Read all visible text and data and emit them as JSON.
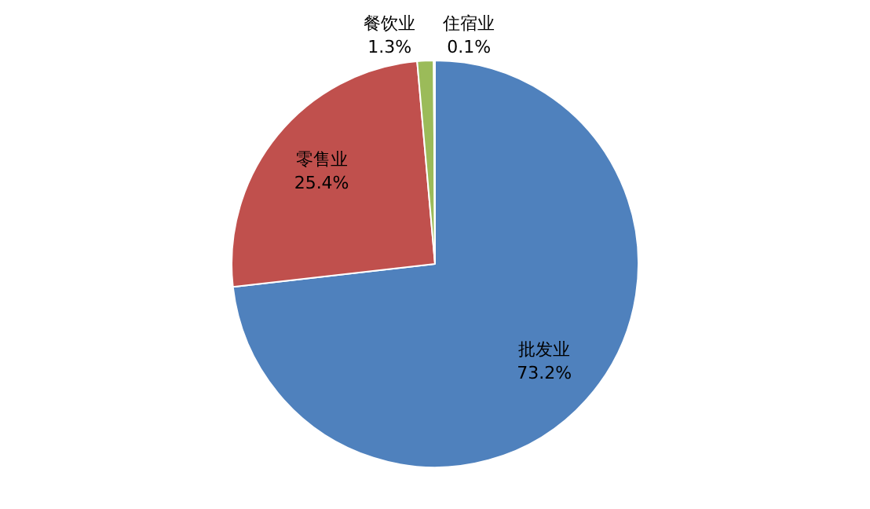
{
  "chart_data": {
    "type": "pie",
    "categories": [
      "批发业",
      "零售业",
      "餐饮业",
      "住宿业"
    ],
    "values": [
      73.2,
      25.4,
      1.3,
      0.1
    ],
    "value_labels": [
      "73.2%",
      "25.4%",
      "1.3%",
      "0.1%"
    ],
    "colors": [
      "#4f81bd",
      "#c0504d",
      "#9bbb59",
      "#8064a2"
    ],
    "legend": false
  }
}
